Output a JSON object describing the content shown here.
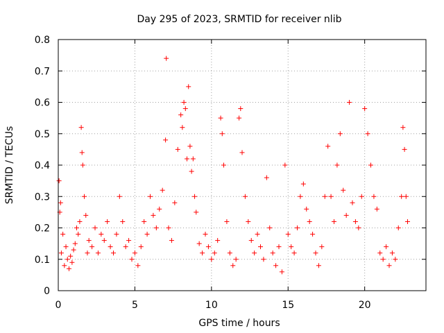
{
  "chart_data": {
    "type": "scatter",
    "title": "Day 295 of 2023, SRMTID for receiver nlib",
    "xlabel": "GPS time / hours",
    "ylabel": "SRMTID / TECUs",
    "xlim": [
      0,
      24
    ],
    "ylim": [
      0,
      0.8
    ],
    "xticks": [
      0,
      5,
      10,
      15,
      20
    ],
    "xtick_labels": [
      "0",
      "5",
      "10",
      "15",
      "20"
    ],
    "yticks": [
      0,
      0.1,
      0.2,
      0.3,
      0.4,
      0.5,
      0.6,
      0.7,
      0.8
    ],
    "ytick_labels": [
      "0",
      "0.1",
      "0.2",
      "0.3",
      "0.4",
      "0.5",
      "0.6",
      "0.7",
      "0.8"
    ],
    "grid": true,
    "marker": "+",
    "color": "#ff0000",
    "series": [
      {
        "name": "SRMTID",
        "points": [
          [
            0.05,
            0.35
          ],
          [
            0.1,
            0.25
          ],
          [
            0.15,
            0.28
          ],
          [
            0.2,
            0.12
          ],
          [
            0.3,
            0.18
          ],
          [
            0.4,
            0.08
          ],
          [
            0.5,
            0.14
          ],
          [
            0.6,
            0.1
          ],
          [
            0.7,
            0.07
          ],
          [
            0.8,
            0.11
          ],
          [
            0.9,
            0.09
          ],
          [
            1.0,
            0.13
          ],
          [
            1.1,
            0.15
          ],
          [
            1.2,
            0.2
          ],
          [
            1.3,
            0.18
          ],
          [
            1.4,
            0.22
          ],
          [
            1.5,
            0.52
          ],
          [
            1.55,
            0.44
          ],
          [
            1.6,
            0.4
          ],
          [
            1.7,
            0.3
          ],
          [
            1.8,
            0.24
          ],
          [
            1.9,
            0.12
          ],
          [
            2.0,
            0.16
          ],
          [
            2.2,
            0.14
          ],
          [
            2.4,
            0.2
          ],
          [
            2.6,
            0.12
          ],
          [
            2.8,
            0.18
          ],
          [
            3.0,
            0.16
          ],
          [
            3.2,
            0.22
          ],
          [
            3.4,
            0.14
          ],
          [
            3.6,
            0.12
          ],
          [
            3.8,
            0.18
          ],
          [
            4.0,
            0.3
          ],
          [
            4.2,
            0.22
          ],
          [
            4.4,
            0.14
          ],
          [
            4.6,
            0.16
          ],
          [
            4.8,
            0.1
          ],
          [
            5.0,
            0.12
          ],
          [
            5.2,
            0.08
          ],
          [
            5.4,
            0.14
          ],
          [
            5.6,
            0.22
          ],
          [
            5.8,
            0.18
          ],
          [
            6.0,
            0.3
          ],
          [
            6.2,
            0.24
          ],
          [
            6.4,
            0.2
          ],
          [
            6.6,
            0.26
          ],
          [
            6.8,
            0.32
          ],
          [
            7.0,
            0.48
          ],
          [
            7.05,
            0.74
          ],
          [
            7.2,
            0.2
          ],
          [
            7.4,
            0.16
          ],
          [
            7.6,
            0.28
          ],
          [
            7.8,
            0.45
          ],
          [
            8.0,
            0.56
          ],
          [
            8.1,
            0.52
          ],
          [
            8.2,
            0.6
          ],
          [
            8.3,
            0.58
          ],
          [
            8.4,
            0.42
          ],
          [
            8.5,
            0.65
          ],
          [
            8.6,
            0.46
          ],
          [
            8.7,
            0.38
          ],
          [
            8.8,
            0.42
          ],
          [
            8.9,
            0.3
          ],
          [
            9.0,
            0.25
          ],
          [
            9.2,
            0.15
          ],
          [
            9.4,
            0.12
          ],
          [
            9.6,
            0.18
          ],
          [
            9.8,
            0.14
          ],
          [
            10.0,
            0.1
          ],
          [
            10.2,
            0.12
          ],
          [
            10.4,
            0.16
          ],
          [
            10.6,
            0.55
          ],
          [
            10.7,
            0.5
          ],
          [
            10.8,
            0.4
          ],
          [
            11.0,
            0.22
          ],
          [
            11.2,
            0.12
          ],
          [
            11.4,
            0.08
          ],
          [
            11.6,
            0.1
          ],
          [
            11.8,
            0.55
          ],
          [
            11.9,
            0.58
          ],
          [
            12.0,
            0.44
          ],
          [
            12.2,
            0.3
          ],
          [
            12.4,
            0.22
          ],
          [
            12.6,
            0.16
          ],
          [
            12.8,
            0.12
          ],
          [
            13.0,
            0.18
          ],
          [
            13.2,
            0.14
          ],
          [
            13.4,
            0.1
          ],
          [
            13.6,
            0.36
          ],
          [
            13.8,
            0.2
          ],
          [
            14.0,
            0.12
          ],
          [
            14.2,
            0.08
          ],
          [
            14.4,
            0.14
          ],
          [
            14.6,
            0.06
          ],
          [
            14.8,
            0.4
          ],
          [
            15.0,
            0.18
          ],
          [
            15.2,
            0.14
          ],
          [
            15.4,
            0.12
          ],
          [
            15.6,
            0.2
          ],
          [
            15.8,
            0.3
          ],
          [
            16.0,
            0.34
          ],
          [
            16.2,
            0.26
          ],
          [
            16.4,
            0.22
          ],
          [
            16.6,
            0.18
          ],
          [
            16.8,
            0.12
          ],
          [
            17.0,
            0.08
          ],
          [
            17.2,
            0.14
          ],
          [
            17.4,
            0.3
          ],
          [
            17.6,
            0.46
          ],
          [
            17.8,
            0.3
          ],
          [
            18.0,
            0.22
          ],
          [
            18.2,
            0.4
          ],
          [
            18.4,
            0.5
          ],
          [
            18.6,
            0.32
          ],
          [
            18.8,
            0.24
          ],
          [
            19.0,
            0.6
          ],
          [
            19.2,
            0.28
          ],
          [
            19.4,
            0.22
          ],
          [
            19.6,
            0.2
          ],
          [
            19.8,
            0.3
          ],
          [
            20.0,
            0.58
          ],
          [
            20.2,
            0.5
          ],
          [
            20.4,
            0.4
          ],
          [
            20.6,
            0.3
          ],
          [
            20.8,
            0.26
          ],
          [
            21.0,
            0.12
          ],
          [
            21.2,
            0.1
          ],
          [
            21.4,
            0.14
          ],
          [
            21.6,
            0.08
          ],
          [
            21.8,
            0.12
          ],
          [
            22.0,
            0.1
          ],
          [
            22.2,
            0.2
          ],
          [
            22.4,
            0.3
          ],
          [
            22.5,
            0.52
          ],
          [
            22.6,
            0.45
          ],
          [
            22.7,
            0.3
          ],
          [
            22.8,
            0.22
          ]
        ]
      }
    ]
  }
}
